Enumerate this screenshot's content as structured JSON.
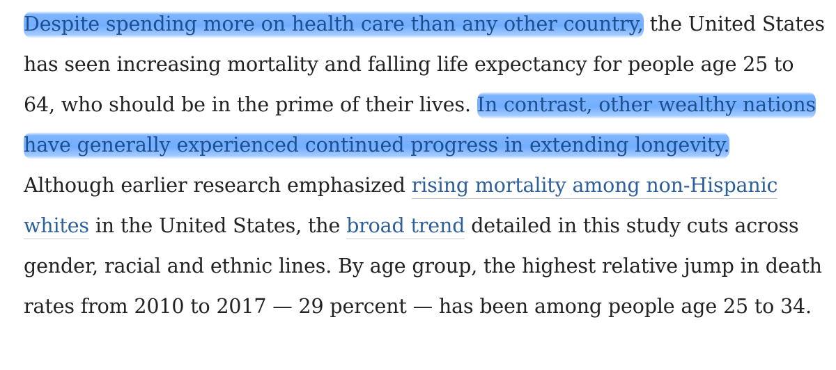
{
  "paragraph": {
    "s1_hl": "Despite spending more on health care than any other country,",
    "s1_rest": " the United States has seen increasing mortality and falling life expectancy for people age 25 to 64, who should be in the prime of their lives. ",
    "s2_hl": "In contrast, other wealthy nations have generally experienced continued progress in extending longevity.",
    "s3_pre": " Although earlier research emphasized ",
    "link1": "rising mortality among non-Hispanic whites",
    "s3_mid": " in the United States, the ",
    "link2": "broad trend",
    "s3_post": " detailed in this study cuts across gender, racial and ethnic lines. By age group, the highest relative jump in death rates from 2010 to 2017 — 29 percent — has been among people age 25 to 34."
  },
  "colors": {
    "highlight": "#5aa0ff",
    "link": "#2d5f9a",
    "text": "#222222"
  }
}
